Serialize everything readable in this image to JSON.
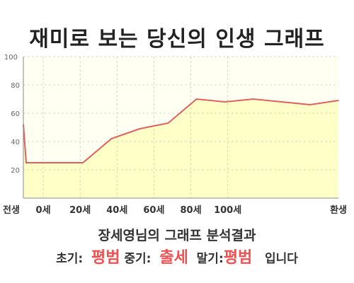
{
  "title": "재미로 보는 당신의 인생 그래프",
  "chart_data": {
    "type": "area",
    "x_positions": [
      -1,
      0,
      20,
      30,
      40,
      50,
      60,
      70,
      80,
      90,
      100,
      110
    ],
    "values": [
      52,
      25,
      25,
      42,
      49,
      53,
      70,
      68,
      70,
      68,
      66,
      69
    ],
    "xlim": [
      -1,
      110
    ],
    "ylim": [
      0,
      100
    ],
    "yticks": [
      20,
      40,
      60,
      80,
      100
    ],
    "yticks_top_label": "100",
    "x_tick_labels": [
      {
        "label": "전생",
        "x": -1
      },
      {
        "label": "0세",
        "x": 6
      },
      {
        "label": "20세",
        "x": 19
      },
      {
        "label": "40세",
        "x": 32
      },
      {
        "label": "60세",
        "x": 45
      },
      {
        "label": "80세",
        "x": 58
      },
      {
        "label": "100세",
        "x": 71
      },
      {
        "label": "환생",
        "x": 84
      }
    ],
    "grid": true,
    "colors": {
      "line": "#e06060",
      "fill": "#ffffc8",
      "plot_bg": "#fffff2",
      "grid": "#d8d8c0"
    }
  },
  "result": {
    "subtitle": "장세영님의 그래프 분석결과",
    "early_label": "초기:",
    "early_value": "평범",
    "mid_label": "중기:",
    "mid_value": "출세",
    "late_label": "말기:",
    "late_value": "평범",
    "suffix": "입니다"
  }
}
